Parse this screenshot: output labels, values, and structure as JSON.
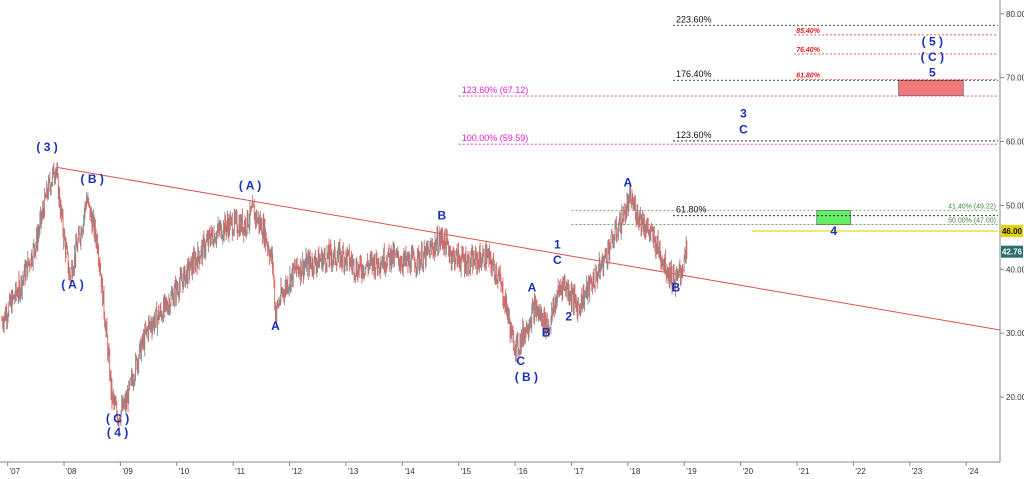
{
  "chart_data": {
    "type": "line",
    "title": "",
    "xlabel": "",
    "ylabel": "",
    "ylim": [
      10,
      82
    ],
    "y_ticks": [
      "20.00",
      "30.00",
      "40.00",
      "50.00",
      "60.00",
      "70.00",
      "80.00"
    ],
    "x_ticks": [
      "'07",
      "'08",
      "'09",
      "'10",
      "'11",
      "'12",
      "'13",
      "'14",
      "'15",
      "'16",
      "'17",
      "'18",
      "'19",
      "'20",
      "'21",
      "'22",
      "'23",
      "'24"
    ],
    "price_series": {
      "name": "",
      "points": [
        [
          2006.9,
          32
        ],
        [
          2007.2,
          37
        ],
        [
          2007.5,
          44
        ],
        [
          2007.7,
          52
        ],
        [
          2007.85,
          56
        ],
        [
          2008.0,
          45
        ],
        [
          2008.1,
          39
        ],
        [
          2008.3,
          46
        ],
        [
          2008.4,
          51
        ],
        [
          2008.6,
          44
        ],
        [
          2008.75,
          30
        ],
        [
          2008.85,
          20
        ],
        [
          2008.95,
          17
        ],
        [
          2009.1,
          19
        ],
        [
          2009.3,
          26
        ],
        [
          2009.5,
          31
        ],
        [
          2009.8,
          34
        ],
        [
          2010.0,
          37
        ],
        [
          2010.3,
          41
        ],
        [
          2010.6,
          45
        ],
        [
          2010.9,
          47
        ],
        [
          2011.2,
          47
        ],
        [
          2011.35,
          49
        ],
        [
          2011.55,
          46
        ],
        [
          2011.7,
          41
        ],
        [
          2011.75,
          33
        ],
        [
          2011.85,
          36
        ],
        [
          2012.1,
          40
        ],
        [
          2012.4,
          41
        ],
        [
          2012.7,
          42
        ],
        [
          2013.0,
          42
        ],
        [
          2013.2,
          40
        ],
        [
          2013.5,
          41
        ],
        [
          2013.8,
          42
        ],
        [
          2014.1,
          41
        ],
        [
          2014.4,
          42
        ],
        [
          2014.7,
          45
        ],
        [
          2014.9,
          42
        ],
        [
          2015.2,
          41
        ],
        [
          2015.5,
          42
        ],
        [
          2015.7,
          39
        ],
        [
          2015.85,
          34
        ],
        [
          2015.95,
          29
        ],
        [
          2016.05,
          28
        ],
        [
          2016.2,
          31
        ],
        [
          2016.35,
          34
        ],
        [
          2016.5,
          32
        ],
        [
          2016.6,
          31
        ],
        [
          2016.75,
          36
        ],
        [
          2016.85,
          38
        ],
        [
          2017.0,
          36
        ],
        [
          2017.1,
          34
        ],
        [
          2017.3,
          37
        ],
        [
          2017.5,
          40
        ],
        [
          2017.7,
          44
        ],
        [
          2017.9,
          48
        ],
        [
          2018.05,
          51
        ],
        [
          2018.15,
          49
        ],
        [
          2018.3,
          47
        ],
        [
          2018.5,
          44
        ],
        [
          2018.7,
          40
        ],
        [
          2018.85,
          38
        ],
        [
          2018.95,
          40
        ],
        [
          2019.05,
          42.76
        ]
      ]
    },
    "trendline": {
      "points": [
        [
          2007.85,
          56
        ],
        [
          2024.6,
          30.5
        ]
      ]
    },
    "current_price": {
      "value": 42.76,
      "label": "42.76",
      "color": "#2a6e6e"
    },
    "target_level": {
      "value": 46.0,
      "label": "46.00",
      "color": "#e6d200"
    },
    "fib_levels": [
      {
        "label": "223.60%",
        "y": 78.2,
        "x_start": 2018.8,
        "color": "#111111",
        "style": "black"
      },
      {
        "label": "176.40%",
        "y": 69.6,
        "x_start": 2018.8,
        "color": "#111111",
        "style": "black"
      },
      {
        "label": "123.60% (67.12)",
        "y": 67.12,
        "x_start": 2015.0,
        "color": "#e020d0",
        "style": "magenta"
      },
      {
        "label": "123.60%",
        "y": 60.1,
        "x_start": 2018.8,
        "color": "#111111",
        "style": "black"
      },
      {
        "label": "100.00% (59.59)",
        "y": 59.59,
        "x_start": 2015.0,
        "color": "#e020d0",
        "style": "magenta"
      },
      {
        "label": "61.80%",
        "y": 48.4,
        "x_start": 2018.8,
        "color": "#111111",
        "style": "black"
      }
    ],
    "red_fibs": [
      {
        "label": "85.40%",
        "y": 76.7
      },
      {
        "label": "76.40%",
        "y": 73.7
      },
      {
        "label": "61.80%",
        "y": 69.7
      }
    ],
    "green_fibs": [
      {
        "label": "41.40% (49.22)",
        "y": 49.22
      },
      {
        "label": "50.00% (47.00)",
        "y": 47.0
      }
    ],
    "zones": [
      {
        "name": "green-zone",
        "x0": 2021.35,
        "x1": 2021.95,
        "y0": 47.0,
        "y1": 49.22,
        "color": "#66ee66"
      },
      {
        "name": "red-zone",
        "x0": 2022.8,
        "x1": 2023.95,
        "y0": 67.2,
        "y1": 69.6,
        "color": "#f07878"
      }
    ],
    "wave_labels": [
      {
        "text": "( 3 )",
        "x": 2007.7,
        "y": 58.5
      },
      {
        "text": "( B )",
        "x": 2008.5,
        "y": 53.5
      },
      {
        "text": "( A )",
        "x": 2008.15,
        "y": 37.0
      },
      {
        "text": "( C )",
        "x": 2008.95,
        "y": 16.0
      },
      {
        "text": "( 4 )",
        "x": 2008.95,
        "y": 13.8
      },
      {
        "text": "( A )",
        "x": 2011.3,
        "y": 52.5
      },
      {
        "text": "A",
        "x": 2011.75,
        "y": 30.5
      },
      {
        "text": "B",
        "x": 2014.7,
        "y": 47.8
      },
      {
        "text": "C",
        "x": 2016.1,
        "y": 25.0
      },
      {
        "text": "( B )",
        "x": 2016.2,
        "y": 22.5
      },
      {
        "text": "A",
        "x": 2016.3,
        "y": 36.5
      },
      {
        "text": "B",
        "x": 2016.55,
        "y": 29.5
      },
      {
        "text": "1",
        "x": 2016.75,
        "y": 43.3
      },
      {
        "text": "C",
        "x": 2016.75,
        "y": 40.8
      },
      {
        "text": "2",
        "x": 2016.95,
        "y": 32.0
      },
      {
        "text": "A",
        "x": 2018.0,
        "y": 53.0
      },
      {
        "text": "B",
        "x": 2018.85,
        "y": 36.5
      },
      {
        "text": "3",
        "x": 2020.05,
        "y": 63.8
      },
      {
        "text": "C",
        "x": 2020.05,
        "y": 61.3
      },
      {
        "text": "4",
        "x": 2021.65,
        "y": 45.4
      },
      {
        "text": "( 5 )",
        "x": 2023.4,
        "y": 75.0
      },
      {
        "text": "( C )",
        "x": 2023.4,
        "y": 72.6
      },
      {
        "text": "5",
        "x": 2023.4,
        "y": 70.2
      }
    ]
  }
}
